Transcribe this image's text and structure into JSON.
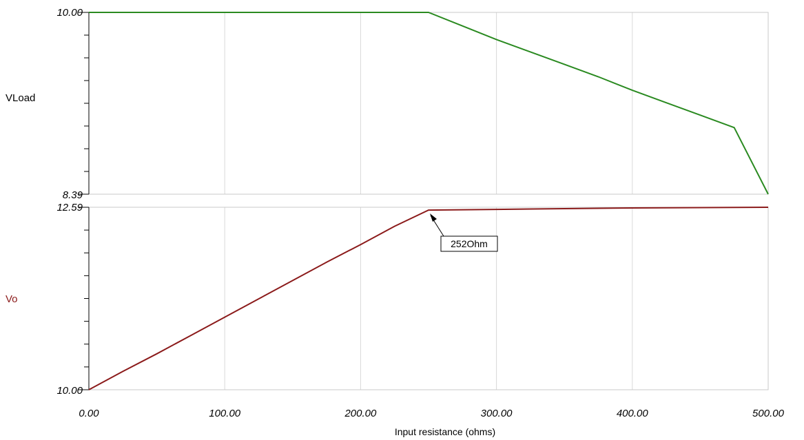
{
  "chart_data": {
    "type": "line",
    "xlabel": "Input resistance (ohms)",
    "x_ticks": [
      "0.00",
      "100.00",
      "200.00",
      "300.00",
      "400.00",
      "500.00"
    ],
    "xlim": [
      0,
      500
    ],
    "grid": true,
    "panels": [
      {
        "ylabel": "VLoad",
        "ylabel_color": "#000000",
        "ylim": [
          8.39,
          10.0
        ],
        "y_tick_labels": [
          "10.00",
          "8.39"
        ],
        "series": [
          {
            "name": "VLoad",
            "color": "#2a8a20",
            "x": [
              0,
              50,
              100,
              150,
              200,
              250,
              275,
              300,
              325,
              350,
              375,
              400,
              425,
              450,
              475,
              500
            ],
            "y": [
              10.0,
              10.0,
              10.0,
              10.0,
              10.0,
              10.0,
              9.88,
              9.76,
              9.65,
              9.54,
              9.43,
              9.31,
              9.2,
              9.09,
              8.98,
              8.39
            ]
          }
        ]
      },
      {
        "ylabel": "Vo",
        "ylabel_color": "#8b1a1a",
        "ylim": [
          10.0,
          12.59
        ],
        "y_tick_labels": [
          "12.59",
          "10.00"
        ],
        "series": [
          {
            "name": "Vo",
            "color": "#8b1a1a",
            "x": [
              0,
              25,
              50,
              75,
              100,
              125,
              150,
              175,
              200,
              225,
              250,
              300,
              350,
              400,
              450,
              500
            ],
            "y": [
              10.0,
              10.26,
              10.51,
              10.77,
              11.03,
              11.29,
              11.55,
              11.81,
              12.06,
              12.32,
              12.55,
              12.56,
              12.57,
              12.58,
              12.585,
              12.59
            ]
          }
        ],
        "annotation": {
          "text": "252Ohm",
          "x": 252,
          "y": 12.55
        }
      }
    ]
  }
}
